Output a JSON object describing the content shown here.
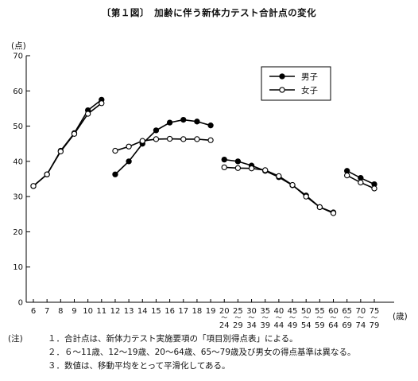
{
  "title": "〔第１図〕　加齢に伴う新体力テスト合計点の変化",
  "notes": {
    "head": "(注)",
    "lines": [
      "１．合計点は、新体力テスト実施要項の「項目別得点表」による。",
      "２．６～11歳、12～19歳、20～64歳、65～79歳及び男女の得点基準は異なる。",
      "３．数値は、移動平均をとって平滑化してある。"
    ]
  },
  "chart_data": {
    "type": "line",
    "title": "〔第１図〕　加齢に伴う新体力テスト合計点の変化",
    "ylabel": "(点)",
    "xlabel": "(歳)",
    "ylim": [
      0,
      70
    ],
    "yticks": [
      0,
      10,
      20,
      30,
      40,
      50,
      60,
      70
    ],
    "legend_position": "top-right",
    "grid": false,
    "categories": [
      "6",
      "7",
      "8",
      "9",
      "10",
      "11",
      "12",
      "13",
      "14",
      "15",
      "16",
      "17",
      "18",
      "19",
      "20-24",
      "25-29",
      "30-34",
      "35-39",
      "40-44",
      "45-49",
      "50-54",
      "55-59",
      "60-64",
      "65-69",
      "70-74",
      "75-79"
    ],
    "category_labels": [
      {
        "top": "6",
        "bottom": ""
      },
      {
        "top": "7",
        "bottom": ""
      },
      {
        "top": "8",
        "bottom": ""
      },
      {
        "top": "9",
        "bottom": ""
      },
      {
        "top": "10",
        "bottom": ""
      },
      {
        "top": "11",
        "bottom": ""
      },
      {
        "top": "12",
        "bottom": ""
      },
      {
        "top": "13",
        "bottom": ""
      },
      {
        "top": "14",
        "bottom": ""
      },
      {
        "top": "15",
        "bottom": ""
      },
      {
        "top": "16",
        "bottom": ""
      },
      {
        "top": "17",
        "bottom": ""
      },
      {
        "top": "18",
        "bottom": ""
      },
      {
        "top": "19",
        "bottom": ""
      },
      {
        "top": "20",
        "bottom": "24"
      },
      {
        "top": "25",
        "bottom": "29"
      },
      {
        "top": "30",
        "bottom": "34"
      },
      {
        "top": "35",
        "bottom": "39"
      },
      {
        "top": "40",
        "bottom": "44"
      },
      {
        "top": "45",
        "bottom": "49"
      },
      {
        "top": "50",
        "bottom": "54"
      },
      {
        "top": "55",
        "bottom": "59"
      },
      {
        "top": "60",
        "bottom": "64"
      },
      {
        "top": "65",
        "bottom": "69"
      },
      {
        "top": "70",
        "bottom": "74"
      },
      {
        "top": "75",
        "bottom": "79"
      }
    ],
    "segments": [
      [
        0,
        5
      ],
      [
        6,
        13
      ],
      [
        14,
        22
      ],
      [
        23,
        25
      ]
    ],
    "series": [
      {
        "name": "男子",
        "marker": "filled",
        "color": "#000000",
        "values": [
          33.0,
          36.3,
          43.0,
          48.0,
          54.5,
          57.5,
          36.3,
          40.0,
          45.0,
          48.8,
          51.0,
          51.8,
          51.3,
          50.2,
          40.5,
          40.0,
          38.8,
          37.3,
          35.5,
          33.2,
          30.3,
          27.0,
          25.5,
          37.3,
          35.3,
          33.5
        ]
      },
      {
        "name": "女子",
        "marker": "open",
        "color": "#000000",
        "values": [
          33.0,
          36.3,
          42.8,
          47.8,
          53.5,
          56.5,
          43.0,
          44.2,
          45.8,
          46.3,
          46.4,
          46.3,
          46.3,
          46.0,
          38.3,
          38.1,
          38.0,
          37.5,
          35.8,
          33.3,
          30.0,
          27.0,
          25.3,
          36.0,
          34.0,
          32.3
        ]
      }
    ]
  }
}
